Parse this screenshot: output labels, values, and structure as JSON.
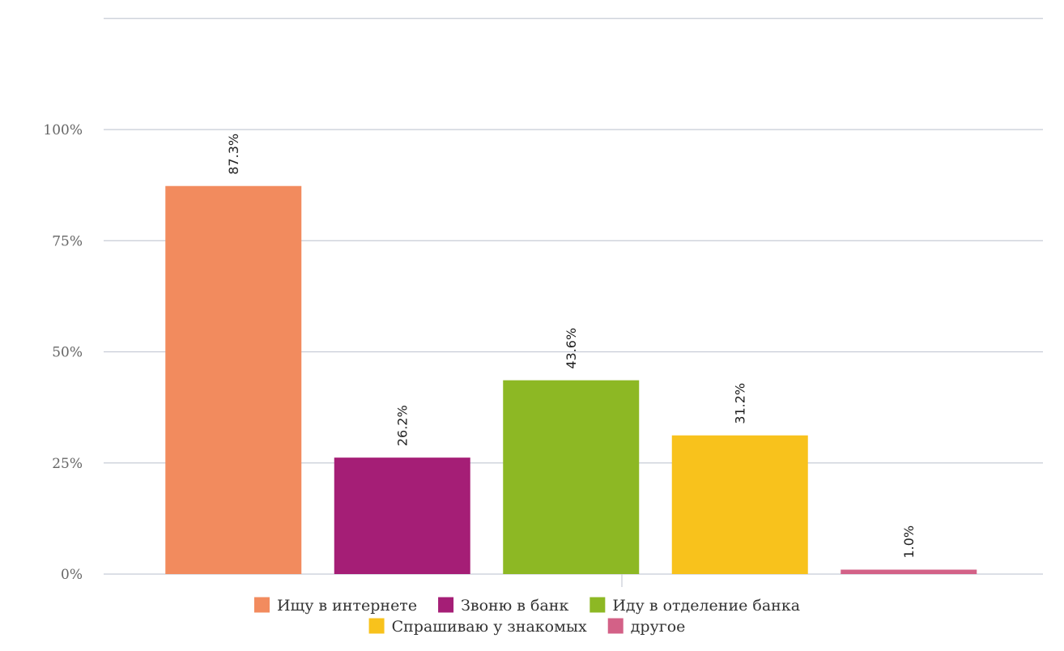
{
  "chart_data": {
    "type": "bar",
    "categories": [
      "Ищу в интернете",
      "Звоню в банк",
      "Иду в отделение банка",
      "Спрашиваю у знакомых",
      "другое"
    ],
    "values": [
      87.3,
      26.2,
      43.6,
      31.2,
      1.0
    ],
    "data_labels": [
      "87.3%",
      "26.2%",
      "43.6%",
      "31.2%",
      "1.0%"
    ],
    "colors": [
      "#f28b5e",
      "#a51e76",
      "#8db824",
      "#f8c21c",
      "#d36187"
    ],
    "y_ticks": [
      0,
      25,
      50,
      75,
      100
    ],
    "y_tick_labels": [
      "0%",
      "25%",
      "50%",
      "75%",
      "100%"
    ],
    "ylim": [
      0,
      125
    ],
    "grid": true,
    "legend_position": "bottom",
    "title": "",
    "xlabel": "",
    "ylabel": ""
  }
}
